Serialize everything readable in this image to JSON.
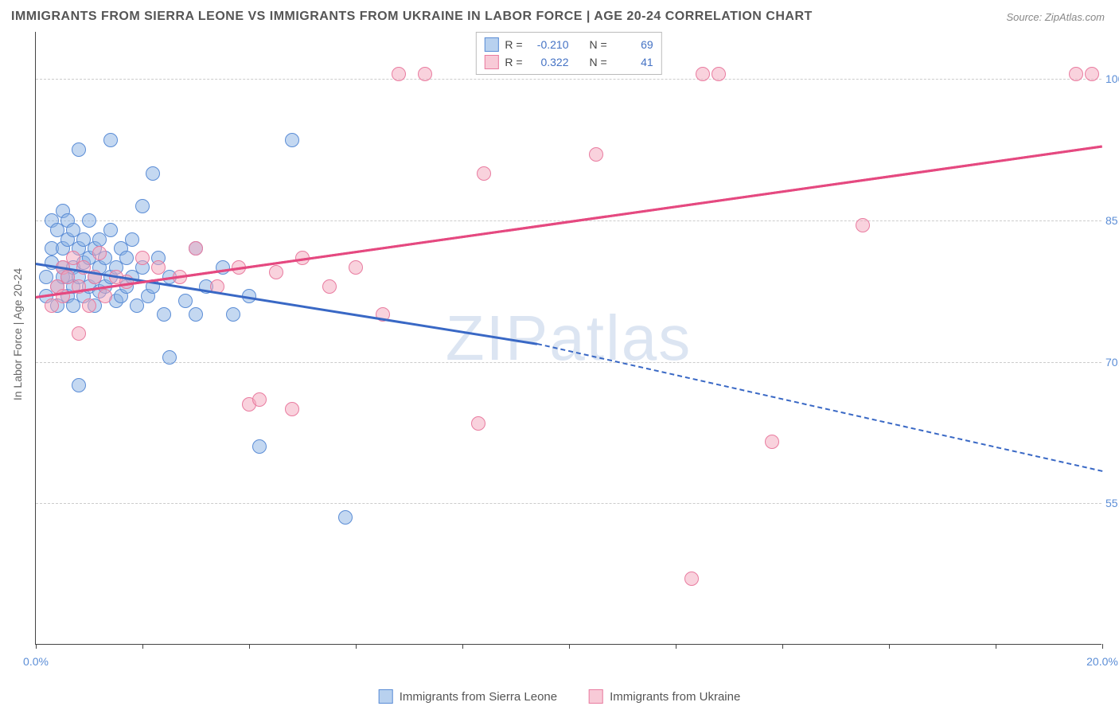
{
  "title": "IMMIGRANTS FROM SIERRA LEONE VS IMMIGRANTS FROM UKRAINE IN LABOR FORCE | AGE 20-24 CORRELATION CHART",
  "source": "Source: ZipAtlas.com",
  "watermark": "ZIPatlas",
  "ylabel": "In Labor Force | Age 20-24",
  "chart": {
    "type": "scatter",
    "xlim": [
      0,
      20
    ],
    "ylim": [
      40,
      105
    ],
    "xticks": [
      0,
      2,
      4,
      6,
      8,
      10,
      12,
      14,
      16,
      18,
      20
    ],
    "xtick_labels": {
      "0": "0.0%",
      "20": "20.0%"
    },
    "yticks": [
      55,
      70,
      85,
      100
    ],
    "ytick_labels": [
      "55.0%",
      "70.0%",
      "85.0%",
      "100.0%"
    ],
    "grid_color": "#cccccc",
    "background_color": "#ffffff",
    "series": [
      {
        "key": "sierra_leone",
        "label": "Immigrants from Sierra Leone",
        "fill": "rgba(137,178,228,0.5)",
        "stroke": "#5b8dd6",
        "trend_color": "#3968c5",
        "R": "-0.210",
        "N": "69",
        "trend": {
          "x1": 0,
          "y1": 80.5,
          "x2": 9.4,
          "y2": 72.0,
          "solid_until_x": 9.4,
          "dash_to_x": 20,
          "dash_y2": 58.5
        },
        "points": [
          [
            0.2,
            77
          ],
          [
            0.2,
            79
          ],
          [
            0.3,
            80.5
          ],
          [
            0.3,
            82
          ],
          [
            0.3,
            85
          ],
          [
            0.4,
            76
          ],
          [
            0.4,
            78
          ],
          [
            0.4,
            84
          ],
          [
            0.5,
            79
          ],
          [
            0.5,
            86
          ],
          [
            0.5,
            82
          ],
          [
            0.5,
            80
          ],
          [
            0.6,
            77
          ],
          [
            0.6,
            79
          ],
          [
            0.6,
            83
          ],
          [
            0.6,
            85
          ],
          [
            0.7,
            76
          ],
          [
            0.7,
            78
          ],
          [
            0.7,
            80
          ],
          [
            0.7,
            84
          ],
          [
            0.8,
            92.5
          ],
          [
            0.8,
            67.5
          ],
          [
            0.8,
            79
          ],
          [
            0.8,
            82
          ],
          [
            0.9,
            77
          ],
          [
            0.9,
            80.5
          ],
          [
            0.9,
            83
          ],
          [
            1.0,
            78
          ],
          [
            1.0,
            81
          ],
          [
            1.0,
            85
          ],
          [
            1.1,
            76
          ],
          [
            1.1,
            79
          ],
          [
            1.1,
            82
          ],
          [
            1.2,
            77.5
          ],
          [
            1.2,
            80
          ],
          [
            1.2,
            83
          ],
          [
            1.3,
            78
          ],
          [
            1.3,
            81
          ],
          [
            1.4,
            93.5
          ],
          [
            1.4,
            79
          ],
          [
            1.4,
            84
          ],
          [
            1.5,
            76.5
          ],
          [
            1.5,
            80
          ],
          [
            1.6,
            77
          ],
          [
            1.6,
            82
          ],
          [
            1.7,
            78
          ],
          [
            1.7,
            81
          ],
          [
            1.8,
            79
          ],
          [
            1.8,
            83
          ],
          [
            1.9,
            76
          ],
          [
            2.0,
            80
          ],
          [
            2.0,
            86.5
          ],
          [
            2.1,
            77
          ],
          [
            2.2,
            90
          ],
          [
            2.2,
            78
          ],
          [
            2.3,
            81
          ],
          [
            2.4,
            75
          ],
          [
            2.5,
            79
          ],
          [
            2.5,
            70.5
          ],
          [
            2.8,
            76.5
          ],
          [
            3.0,
            82
          ],
          [
            3.0,
            75
          ],
          [
            3.2,
            78
          ],
          [
            3.5,
            80
          ],
          [
            3.7,
            75
          ],
          [
            4.0,
            77
          ],
          [
            4.2,
            61
          ],
          [
            4.8,
            93.5
          ],
          [
            5.8,
            53.5
          ]
        ]
      },
      {
        "key": "ukraine",
        "label": "Immigrants from Ukraine",
        "fill": "rgba(244,166,188,0.5)",
        "stroke": "#e97ca0",
        "trend_color": "#e54980",
        "R": "0.322",
        "N": "41",
        "trend": {
          "x1": 0,
          "y1": 77,
          "x2": 20,
          "y2": 93,
          "solid_until_x": 20
        },
        "points": [
          [
            0.3,
            76
          ],
          [
            0.4,
            78
          ],
          [
            0.5,
            77
          ],
          [
            0.5,
            80
          ],
          [
            0.6,
            79
          ],
          [
            0.7,
            81
          ],
          [
            0.8,
            73
          ],
          [
            0.8,
            78
          ],
          [
            0.9,
            80
          ],
          [
            1.0,
            76
          ],
          [
            1.1,
            79
          ],
          [
            1.2,
            81.5
          ],
          [
            1.3,
            77
          ],
          [
            1.5,
            79
          ],
          [
            1.7,
            78.5
          ],
          [
            2.0,
            81
          ],
          [
            2.3,
            80
          ],
          [
            2.7,
            79
          ],
          [
            3.0,
            82
          ],
          [
            3.4,
            78
          ],
          [
            3.8,
            80
          ],
          [
            4.0,
            65.5
          ],
          [
            4.2,
            66
          ],
          [
            4.5,
            79.5
          ],
          [
            4.8,
            65
          ],
          [
            5.0,
            81
          ],
          [
            5.5,
            78
          ],
          [
            6.0,
            80
          ],
          [
            6.5,
            75
          ],
          [
            6.8,
            100.5
          ],
          [
            7.3,
            100.5
          ],
          [
            8.4,
            90
          ],
          [
            8.3,
            63.5
          ],
          [
            10.5,
            92
          ],
          [
            12.3,
            47
          ],
          [
            12.5,
            100.5
          ],
          [
            12.8,
            100.5
          ],
          [
            13.8,
            61.5
          ],
          [
            15.5,
            84.5
          ],
          [
            19.5,
            100.5
          ],
          [
            19.8,
            100.5
          ]
        ]
      }
    ]
  },
  "legend": {
    "r_label": "R =",
    "n_label": "N =",
    "swatch_blue_fill": "rgba(137,178,228,0.6)",
    "swatch_blue_stroke": "#5b8dd6",
    "swatch_pink_fill": "rgba(244,166,188,0.6)",
    "swatch_pink_stroke": "#e97ca0"
  }
}
